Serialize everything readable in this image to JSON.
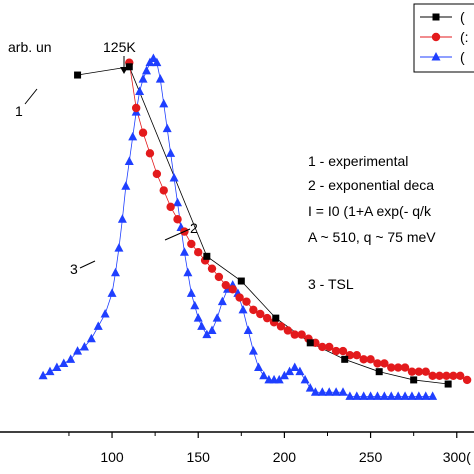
{
  "chart_data": {
    "type": "scatter",
    "title": "",
    "xlabel": "",
    "ylabel": "arb. un",
    "xlim": [
      35,
      310
    ],
    "ylim": [
      0,
      1.0
    ],
    "xticks": [
      100,
      150,
      200,
      250,
      300
    ],
    "xtick_labels": [
      "100",
      "150",
      "200",
      "250",
      "300("
    ],
    "grid": false,
    "legend_position": "top-right",
    "colors": {
      "experimental": "#000000",
      "exponential": "#e31a1c",
      "tsl": "#1f3fff"
    },
    "series": [
      {
        "name": "(",
        "marker": "square",
        "color": "#000000",
        "x": [
          80,
          110,
          155,
          175,
          195,
          215,
          235,
          255,
          275,
          295
        ],
        "y": [
          0.83,
          0.85,
          0.39,
          0.33,
          0.24,
          0.18,
          0.14,
          0.11,
          0.09,
          0.08
        ]
      },
      {
        "name": "(:",
        "marker": "circle",
        "color": "#e31a1c",
        "x": [
          110,
          114,
          118,
          122,
          126,
          130,
          134,
          138,
          142,
          146,
          150,
          154,
          158,
          162,
          166,
          170,
          174,
          178,
          182,
          186,
          190,
          194,
          198,
          202,
          206,
          210,
          214,
          218,
          222,
          226,
          230,
          234,
          238,
          242,
          246,
          250,
          254,
          258,
          262,
          266,
          270,
          274,
          278,
          282,
          286,
          290,
          294,
          298,
          302,
          306
        ],
        "y": [
          0.86,
          0.75,
          0.69,
          0.64,
          0.59,
          0.55,
          0.51,
          0.48,
          0.45,
          0.42,
          0.4,
          0.38,
          0.36,
          0.34,
          0.32,
          0.31,
          0.29,
          0.28,
          0.26,
          0.25,
          0.24,
          0.23,
          0.22,
          0.21,
          0.2,
          0.2,
          0.19,
          0.18,
          0.17,
          0.17,
          0.16,
          0.16,
          0.15,
          0.15,
          0.14,
          0.14,
          0.13,
          0.13,
          0.12,
          0.12,
          0.12,
          0.11,
          0.11,
          0.11,
          0.1,
          0.1,
          0.1,
          0.1,
          0.1,
          0.09
        ]
      },
      {
        "name": "(",
        "marker": "triangle",
        "color": "#1f3fff",
        "x": [
          60,
          64,
          68,
          72,
          76,
          80,
          84,
          88,
          92,
          96,
          100,
          102,
          104,
          106,
          108,
          110,
          112,
          114,
          116,
          118,
          120,
          122,
          124,
          126,
          128,
          130,
          132,
          134,
          136,
          138,
          140,
          142,
          144,
          146,
          148,
          150,
          152,
          155,
          158,
          161,
          164,
          167,
          170,
          173,
          176,
          179,
          182,
          185,
          188,
          191,
          194,
          197,
          200,
          203,
          206,
          209,
          212,
          215,
          218,
          222,
          226,
          230,
          234,
          238,
          242,
          246,
          250,
          254,
          258,
          262,
          266,
          270,
          274,
          278,
          282,
          286
        ],
        "y": [
          0.1,
          0.11,
          0.12,
          0.13,
          0.14,
          0.16,
          0.17,
          0.19,
          0.22,
          0.25,
          0.3,
          0.35,
          0.41,
          0.48,
          0.56,
          0.62,
          0.68,
          0.74,
          0.79,
          0.82,
          0.84,
          0.86,
          0.87,
          0.86,
          0.82,
          0.76,
          0.7,
          0.64,
          0.58,
          0.52,
          0.46,
          0.4,
          0.35,
          0.3,
          0.27,
          0.24,
          0.22,
          0.2,
          0.21,
          0.24,
          0.28,
          0.31,
          0.32,
          0.3,
          0.26,
          0.21,
          0.16,
          0.12,
          0.1,
          0.09,
          0.09,
          0.09,
          0.1,
          0.11,
          0.12,
          0.11,
          0.09,
          0.07,
          0.06,
          0.06,
          0.06,
          0.06,
          0.06,
          0.05,
          0.05,
          0.05,
          0.05,
          0.05,
          0.05,
          0.05,
          0.05,
          0.05,
          0.05,
          0.05,
          0.05,
          0.05
        ]
      }
    ],
    "annotations": {
      "peak_label": "125K",
      "label_1": "1",
      "label_2": "2",
      "label_3": "3",
      "notes": [
        "1 - experimental",
        "2 - exponential deca",
        "I = I0 (1+A exp(- q/k",
        "A ~ 510, q ~ 75 meV",
        "3 - TSL"
      ]
    }
  }
}
